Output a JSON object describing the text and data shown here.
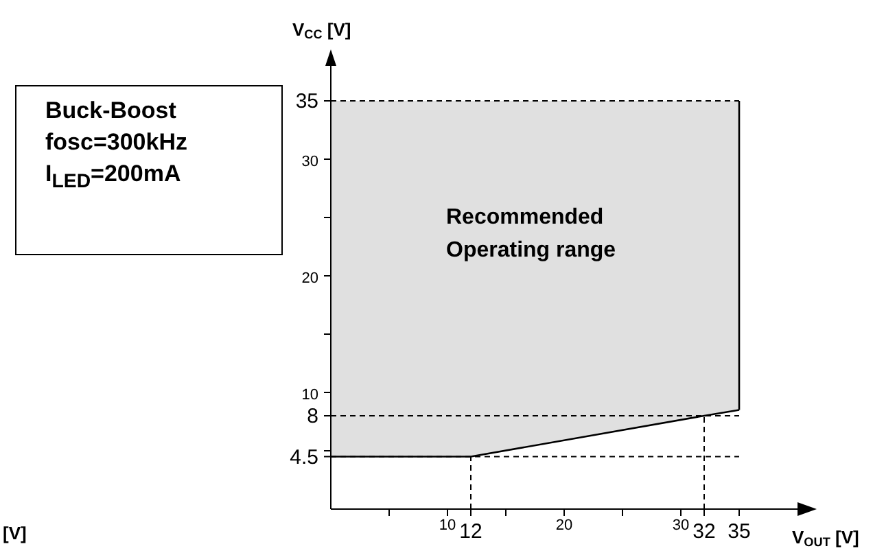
{
  "chart_data": {
    "type": "line",
    "x": [
      0,
      12,
      32,
      35
    ],
    "series": [
      {
        "color": "#000000",
        "values": [
          4.5,
          4.5,
          8,
          8.5
        ],
        "lower": [
          4.5,
          4.5,
          8,
          8.5
        ],
        "upper": [
          35,
          35,
          35,
          35
        ]
      },
      {
        "type": "line",
        "color": "#000000",
        "x": [
          35,
          35
        ],
        "values": [
          8.5,
          35
        ]
      }
    ],
    "xlim": [
      0,
      40
    ],
    "ylim": [
      0,
      38
    ],
    "xticks": [
      {
        "value": 5,
        "label": null
      },
      10,
      12,
      {
        "value": 15,
        "label": null
      },
      20,
      {
        "value": 25,
        "label": null
      },
      30,
      32,
      35
    ],
    "yticks": [
      4.5,
      {
        "value": 5,
        "label": null
      },
      8,
      10,
      {
        "value": 15,
        "label": null
      },
      20,
      {
        "value": 25,
        "label": null
      },
      30,
      35
    ],
    "xlabel": "V$_{OUT}$ [V]",
    "ylabel": "V$_{CC}$ [V]",
    "ref_lines": [
      {
        "axis": "y",
        "value": 35,
        "line_style": "dashed",
        "color": "#000000"
      },
      {
        "axis": "y",
        "value": 8,
        "line_style": "dashed",
        "color": "#000000"
      },
      {
        "axis": "y",
        "value": 4.5,
        "line_style": "dashed",
        "color": "#000000"
      },
      {
        "axis": "x",
        "value": 12,
        "line_style": "dashed",
        "color": "#000000"
      },
      {
        "axis": "x",
        "value": 32,
        "line_style": "dashed",
        "color": "#000000"
      }
    ],
    "annotations": [
      "Recommended Operating range",
      "Buck-Boost",
      "fosc=300kHz",
      "I$_{LED}$=200mA",
      "[V]"
    ],
    "marker": "none",
    "line_style": "solid"
  }
}
